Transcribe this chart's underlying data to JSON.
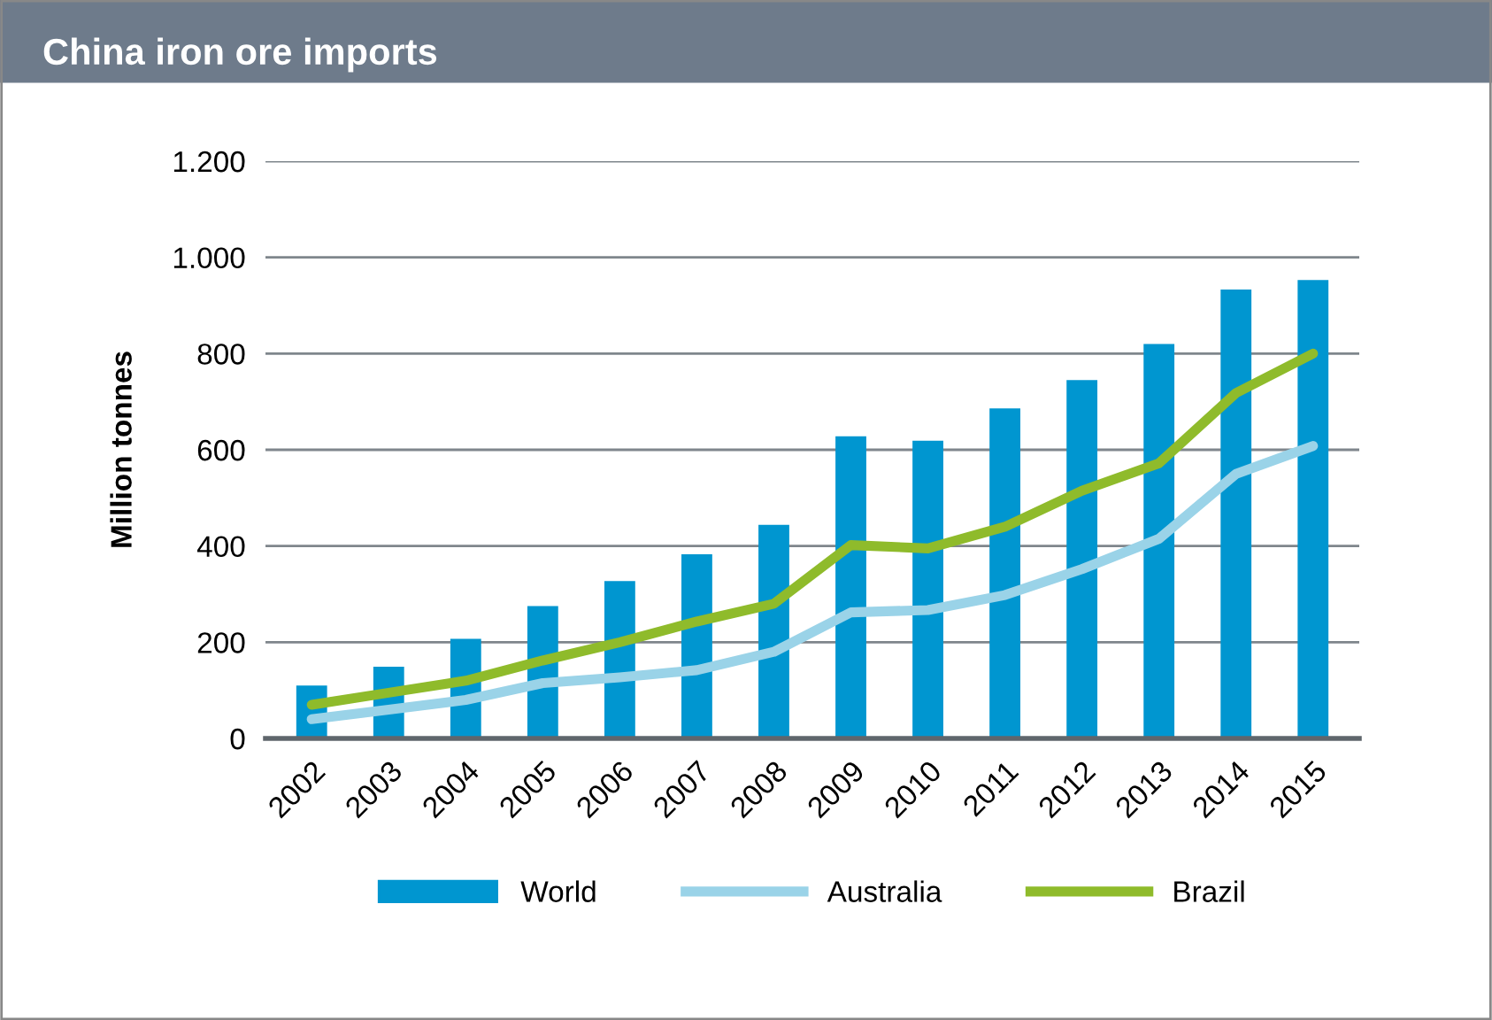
{
  "chart_data": {
    "type": "bar",
    "title": "China iron ore imports",
    "ylabel": "Million tonnes",
    "categories": [
      "2002",
      "2003",
      "2004",
      "2005",
      "2006",
      "2007",
      "2008",
      "2009",
      "2010",
      "2011",
      "2012",
      "2013",
      "2014",
      "2015"
    ],
    "series": [
      {
        "name": "World",
        "color": "#0096d0",
        "values": [
          110,
          149,
          207,
          275,
          327,
          383,
          444,
          628,
          619,
          686,
          745,
          820,
          933,
          953
        ]
      },
      {
        "name": "Australia",
        "type": "line",
        "color": "#9ad3e8",
        "values": [
          40,
          60,
          80,
          115,
          127,
          142,
          180,
          262,
          267,
          298,
          352,
          415,
          550,
          608
        ]
      },
      {
        "name": "Brazil",
        "type": "line",
        "color": "#8fbb2b",
        "values": [
          70,
          95,
          120,
          162,
          200,
          243,
          280,
          402,
          395,
          440,
          515,
          572,
          718,
          800
        ]
      }
    ],
    "ylim": [
      0,
      1200
    ],
    "yticks": [
      0,
      200,
      400,
      600,
      800,
      {
        "value": 1000,
        "label": "1.000"
      },
      {
        "value": 1200,
        "label": "1.200"
      }
    ],
    "grid": "y",
    "legend": "bottom",
    "marker": "none",
    "line_style": "solid"
  }
}
